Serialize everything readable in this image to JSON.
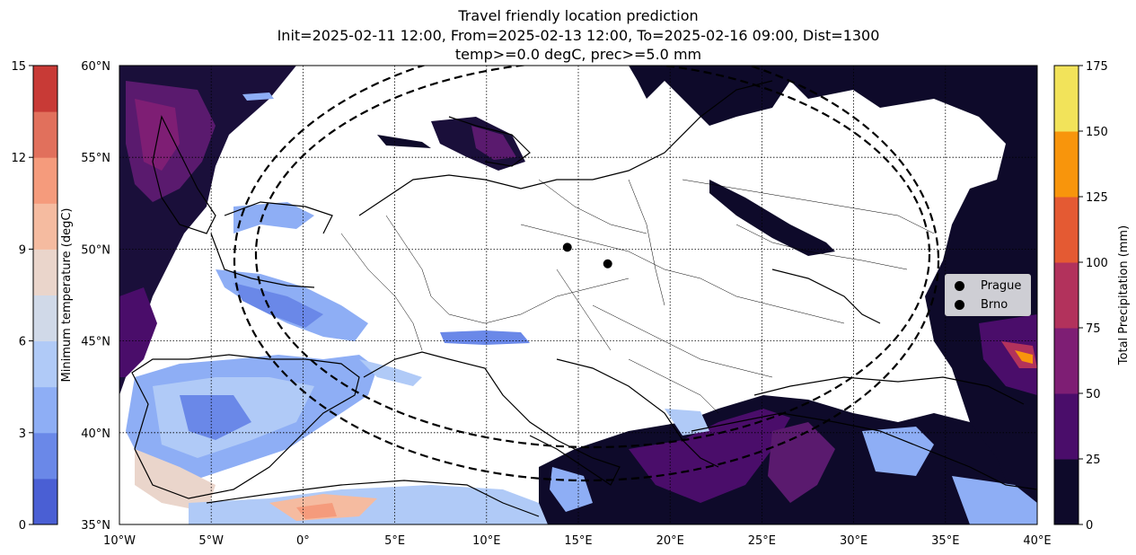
{
  "title": {
    "line1": "Travel friendly location prediction",
    "line2": "Init=2025-02-11 12:00, From=2025-02-13 12:00, To=2025-02-16 09:00, Dist=1300",
    "line3": "temp>=0.0 degC, prec>=5.0 mm"
  },
  "map": {
    "lon_range": [
      -10,
      40
    ],
    "lat_range": [
      35,
      60
    ],
    "lon_ticks": [
      "10°W",
      "5°W",
      "0°",
      "5°E",
      "10°E",
      "15°E",
      "20°E",
      "25°E",
      "30°E",
      "35°E",
      "40°E"
    ],
    "lat_ticks": [
      "35°N",
      "40°N",
      "45°N",
      "50°N",
      "55°N",
      "60°N"
    ],
    "gridlines": "dotted",
    "cities": [
      {
        "name": "Prague",
        "lon": 14.4,
        "lat": 50.1
      },
      {
        "name": "Brno",
        "lon": 16.6,
        "lat": 49.2
      }
    ],
    "radius_circle": {
      "center_lon": 15.3,
      "center_lat": 49.6,
      "dist_km": 1300,
      "style": "dashed"
    }
  },
  "colorbar_temp": {
    "label": "Minimum temperature (degC)",
    "ticks": [
      "0",
      "3",
      "6",
      "9",
      "12",
      "15"
    ],
    "colors": [
      "#4a5fd4",
      "#6a88e8",
      "#8eaef5",
      "#b0caf7",
      "#d0d9e8",
      "#ead5cb",
      "#f5bba0",
      "#f59b7c",
      "#e1705c",
      "#c83a36"
    ]
  },
  "colorbar_prec": {
    "label": "Total Precipitation (mm)",
    "ticks": [
      "0",
      "25",
      "50",
      "75",
      "100",
      "125",
      "150",
      "175"
    ],
    "colors": [
      "#0e0a2a",
      "#4a0d6a",
      "#7e1e74",
      "#b2325c",
      "#e45a33",
      "#f8950c",
      "#f2e35a"
    ]
  },
  "legend": {
    "position": "right",
    "items": [
      "Prague",
      "Brno"
    ]
  }
}
